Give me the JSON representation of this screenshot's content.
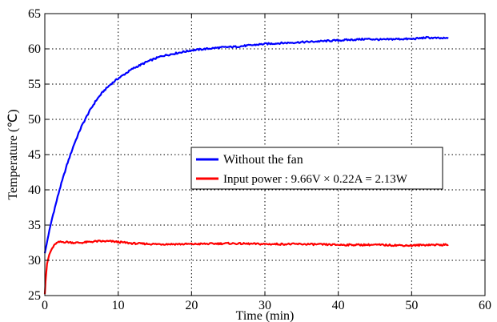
{
  "chart_data": {
    "type": "line",
    "title": "",
    "xlabel": "Time (min)",
    "ylabel": "Temperature (℃)",
    "xlim": [
      0,
      60
    ],
    "ylim": [
      25,
      65
    ],
    "xticks": [
      0,
      10,
      20,
      30,
      40,
      50,
      60
    ],
    "yticks": [
      25,
      30,
      35,
      40,
      45,
      50,
      55,
      60,
      65
    ],
    "grid": true,
    "grid_style": "dotted",
    "legend_position": "center-right",
    "series": [
      {
        "name": "Without the fan",
        "color": "#0000ff",
        "x": [
          0,
          0.5,
          1,
          2,
          3,
          4,
          5,
          6,
          7,
          8,
          9,
          10,
          12,
          14,
          16,
          18,
          20,
          22,
          24,
          26,
          28,
          30,
          32,
          34,
          36,
          38,
          40,
          42,
          44,
          46,
          48,
          50,
          52,
          54,
          55
        ],
        "y": [
          31,
          33.6,
          36,
          40,
          43.5,
          46.5,
          49,
          51,
          52.7,
          54,
          55,
          55.8,
          57.2,
          58.2,
          59,
          59.4,
          59.8,
          60,
          60.2,
          60.3,
          60.5,
          60.7,
          60.8,
          60.9,
          61,
          61.1,
          61.2,
          61.3,
          61.4,
          61.3,
          61.4,
          61.4,
          61.6,
          61.5,
          61.5
        ]
      },
      {
        "name": "Input power : 9.66V × 0.22A = 2.13W",
        "color": "#ff0000",
        "x": [
          0,
          0.1,
          0.3,
          0.6,
          1,
          1.5,
          2,
          3,
          4,
          5,
          6,
          7,
          8,
          9,
          10,
          12,
          15,
          20,
          25,
          30,
          35,
          40,
          45,
          50,
          52,
          55
        ],
        "y": [
          25.2,
          27,
          29.5,
          30.8,
          31.7,
          32.4,
          32.6,
          32.6,
          32.5,
          32.5,
          32.6,
          32.7,
          32.7,
          32.7,
          32.6,
          32.4,
          32.3,
          32.3,
          32.4,
          32.3,
          32.3,
          32.2,
          32.2,
          32.1,
          32.2,
          32.2
        ]
      }
    ]
  }
}
